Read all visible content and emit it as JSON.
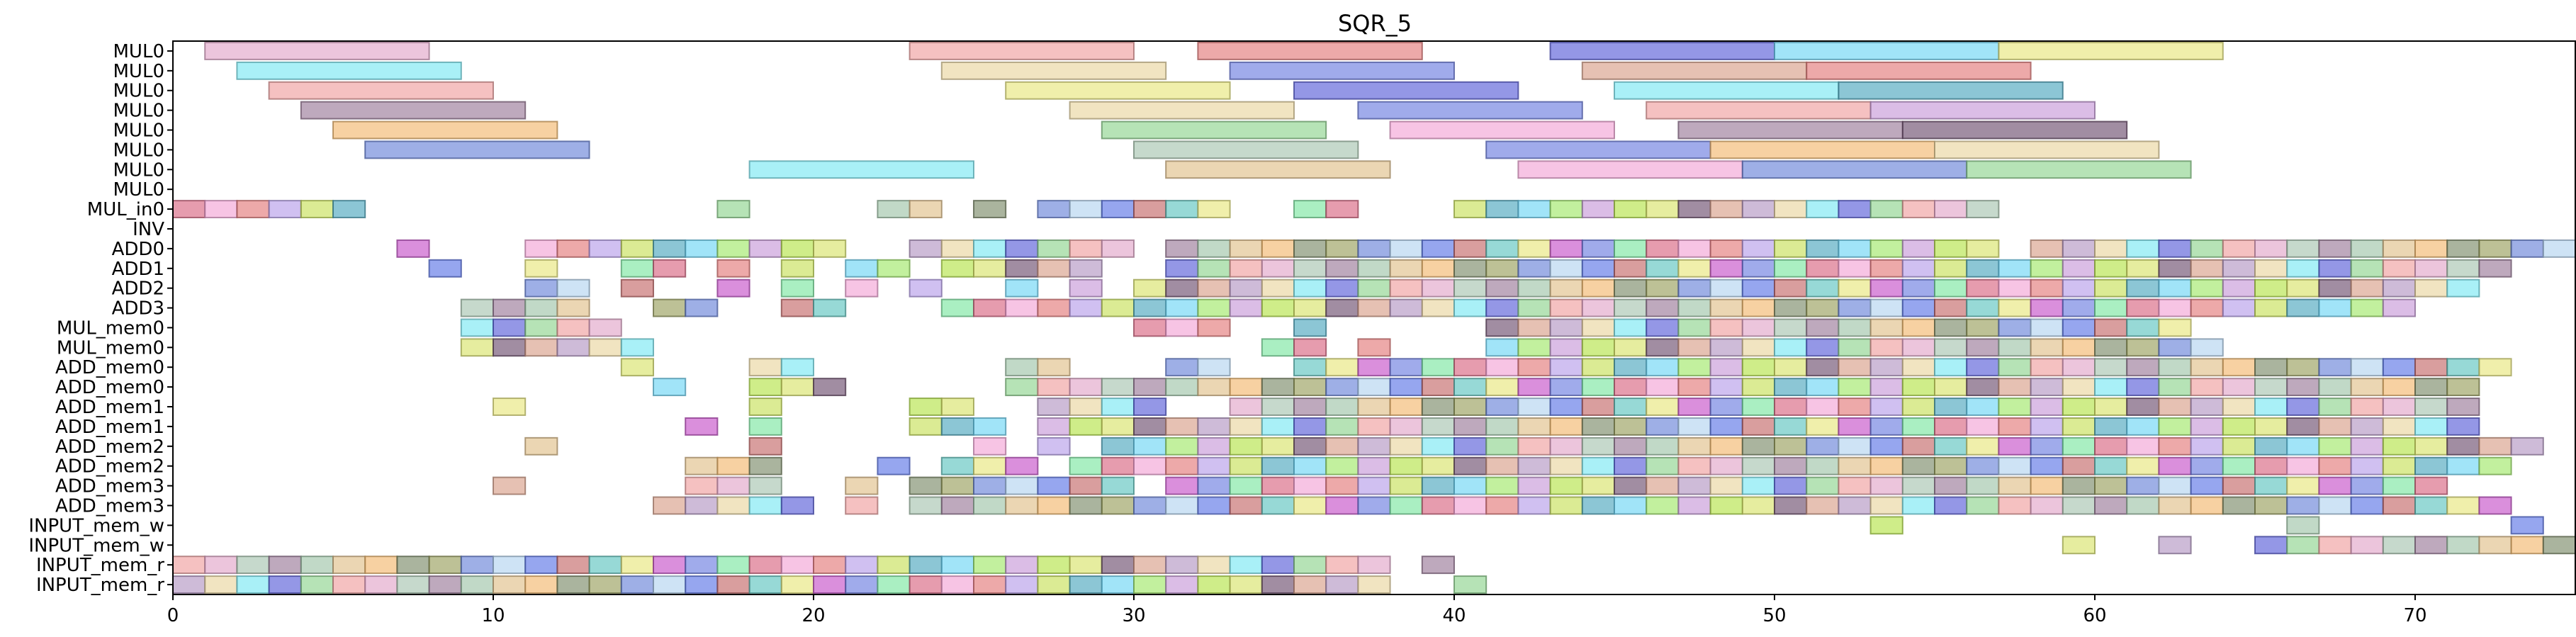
{
  "chart_data": {
    "type": "gantt",
    "title": "SQR_5",
    "xlabel": "",
    "ylabel": "",
    "xlim": [
      0,
      75
    ],
    "xticks": [
      0,
      10,
      20,
      30,
      40,
      50,
      60,
      70
    ],
    "grid": false,
    "legend": "none",
    "rows": [
      "MUL0",
      "MUL0",
      "MUL0",
      "MUL0",
      "MUL0",
      "MUL0",
      "MUL0",
      "MUL0",
      "MUL_in0",
      "INV",
      "ADD0",
      "ADD1",
      "ADD2",
      "ADD3",
      "MUL_mem0",
      "MUL_mem0",
      "ADD_mem0",
      "ADD_mem0",
      "ADD_mem1",
      "ADD_mem1",
      "ADD_mem2",
      "ADD_mem2",
      "ADD_mem3",
      "ADD_mem3",
      "INPUT_mem_w",
      "INPUT_mem_w",
      "INPUT_mem_r",
      "INPUT_mem_r"
    ],
    "long_tasks": [
      {
        "row": 0,
        "start": 1,
        "dur": 7
      },
      {
        "row": 0,
        "start": 23,
        "dur": 7
      },
      {
        "row": 0,
        "start": 32,
        "dur": 7
      },
      {
        "row": 0,
        "start": 43,
        "dur": 7
      },
      {
        "row": 0,
        "start": 50,
        "dur": 7
      },
      {
        "row": 0,
        "start": 57,
        "dur": 7
      },
      {
        "row": 1,
        "start": 2,
        "dur": 7
      },
      {
        "row": 1,
        "start": 24,
        "dur": 7
      },
      {
        "row": 1,
        "start": 33,
        "dur": 7
      },
      {
        "row": 1,
        "start": 44,
        "dur": 7
      },
      {
        "row": 1,
        "start": 51,
        "dur": 7
      },
      {
        "row": 2,
        "start": 3,
        "dur": 7
      },
      {
        "row": 2,
        "start": 26,
        "dur": 7
      },
      {
        "row": 2,
        "start": 35,
        "dur": 7
      },
      {
        "row": 2,
        "start": 45,
        "dur": 7
      },
      {
        "row": 2,
        "start": 52,
        "dur": 7
      },
      {
        "row": 3,
        "start": 4,
        "dur": 7
      },
      {
        "row": 3,
        "start": 28,
        "dur": 7
      },
      {
        "row": 3,
        "start": 37,
        "dur": 7
      },
      {
        "row": 3,
        "start": 46,
        "dur": 7
      },
      {
        "row": 3,
        "start": 53,
        "dur": 7
      },
      {
        "row": 4,
        "start": 5,
        "dur": 7
      },
      {
        "row": 4,
        "start": 29,
        "dur": 7
      },
      {
        "row": 4,
        "start": 38,
        "dur": 7
      },
      {
        "row": 4,
        "start": 47,
        "dur": 7
      },
      {
        "row": 4,
        "start": 54,
        "dur": 7
      },
      {
        "row": 5,
        "start": 6,
        "dur": 7
      },
      {
        "row": 5,
        "start": 30,
        "dur": 7
      },
      {
        "row": 5,
        "start": 41,
        "dur": 7
      },
      {
        "row": 5,
        "start": 48,
        "dur": 7
      },
      {
        "row": 5,
        "start": 55,
        "dur": 7
      },
      {
        "row": 6,
        "start": 18,
        "dur": 7
      },
      {
        "row": 6,
        "start": 31,
        "dur": 7
      },
      {
        "row": 6,
        "start": 42,
        "dur": 7
      },
      {
        "row": 6,
        "start": 49,
        "dur": 7
      },
      {
        "row": 6,
        "start": 56,
        "dur": 7
      }
    ],
    "cell_rows": [
      {
        "row": 8,
        "cells": [
          0,
          1,
          2,
          3,
          4,
          5,
          17,
          22,
          23,
          25,
          27,
          28,
          29,
          30,
          31,
          32,
          35,
          36,
          40,
          41,
          42,
          43,
          44,
          45,
          46,
          47,
          48,
          49,
          50,
          51,
          52,
          53,
          54,
          55,
          56
        ]
      },
      {
        "row": 10,
        "cells": [
          7,
          11,
          12,
          13,
          14,
          15,
          16,
          17,
          18,
          19,
          20,
          23,
          24,
          25,
          26,
          27,
          28,
          29,
          31,
          32,
          33,
          34,
          35,
          36,
          37,
          38,
          39,
          40,
          41,
          42,
          43,
          44,
          45,
          46,
          47,
          48,
          49,
          50,
          51,
          52,
          53,
          54,
          55,
          56,
          58,
          59,
          60,
          61,
          62,
          63,
          64,
          65,
          66,
          67,
          68,
          69,
          70,
          71,
          72,
          73,
          74
        ]
      },
      {
        "row": 11,
        "cells": [
          8,
          11,
          14,
          15,
          17,
          19,
          21,
          22,
          24,
          25,
          26,
          27,
          28,
          31,
          32,
          33,
          34,
          35,
          36,
          37,
          38,
          39,
          40,
          41,
          42,
          43,
          44,
          45,
          46,
          47,
          48,
          49,
          50,
          51,
          52,
          53,
          54,
          55,
          56,
          57,
          58,
          59,
          60,
          61,
          62,
          63,
          64,
          65,
          66,
          67,
          68,
          69,
          70,
          71,
          72
        ]
      },
      {
        "row": 12,
        "cells": [
          11,
          12,
          14,
          17,
          19,
          21,
          23,
          26,
          28,
          30,
          31,
          32,
          33,
          34,
          35,
          36,
          37,
          38,
          39,
          40,
          41,
          42,
          43,
          44,
          45,
          46,
          47,
          48,
          49,
          50,
          51,
          52,
          53,
          54,
          55,
          56,
          57,
          58,
          59,
          60,
          61,
          62,
          63,
          64,
          65,
          66,
          67,
          68,
          69,
          70,
          71
        ]
      },
      {
        "row": 13,
        "cells": [
          9,
          10,
          11,
          12,
          15,
          16,
          19,
          20,
          24,
          25,
          26,
          27,
          28,
          29,
          30,
          31,
          32,
          33,
          34,
          35,
          36,
          37,
          38,
          39,
          40,
          41,
          42,
          43,
          44,
          45,
          46,
          47,
          48,
          49,
          50,
          51,
          52,
          53,
          54,
          55,
          56,
          57,
          58,
          59,
          60,
          61,
          62,
          63,
          64,
          65,
          66,
          67,
          68,
          69
        ]
      },
      {
        "row": 14,
        "cells": [
          9,
          10,
          11,
          12,
          13,
          30,
          31,
          32,
          35,
          41,
          42,
          43,
          44,
          45,
          46,
          47,
          48,
          49,
          50,
          51,
          52,
          53,
          54,
          55,
          56,
          57,
          58,
          59,
          60,
          61,
          62
        ]
      },
      {
        "row": 15,
        "cells": [
          9,
          10,
          11,
          12,
          13,
          14,
          34,
          35,
          37,
          41,
          42,
          43,
          44,
          45,
          46,
          47,
          48,
          49,
          50,
          51,
          52,
          53,
          54,
          55,
          56,
          57,
          58,
          59,
          60,
          61,
          62,
          63
        ]
      },
      {
        "row": 16,
        "cells": [
          14,
          18,
          19,
          26,
          27,
          31,
          32,
          35,
          36,
          37,
          38,
          39,
          40,
          41,
          42,
          43,
          44,
          45,
          46,
          47,
          48,
          49,
          50,
          51,
          52,
          53,
          54,
          55,
          56,
          57,
          58,
          59,
          60,
          61,
          62,
          63,
          64,
          65,
          66,
          67,
          68,
          69,
          70,
          71,
          72
        ]
      },
      {
        "row": 17,
        "cells": [
          15,
          18,
          19,
          20,
          26,
          27,
          28,
          29,
          30,
          31,
          32,
          33,
          34,
          35,
          36,
          37,
          38,
          39,
          40,
          41,
          42,
          43,
          44,
          45,
          46,
          47,
          48,
          49,
          50,
          51,
          52,
          53,
          54,
          55,
          56,
          57,
          58,
          59,
          60,
          61,
          62,
          63,
          64,
          65,
          66,
          67,
          68,
          69,
          70,
          71
        ]
      },
      {
        "row": 18,
        "cells": [
          10,
          18,
          23,
          24,
          27,
          28,
          29,
          30,
          33,
          34,
          35,
          36,
          37,
          38,
          39,
          40,
          41,
          42,
          43,
          44,
          45,
          46,
          47,
          48,
          49,
          50,
          51,
          52,
          53,
          54,
          55,
          56,
          57,
          58,
          59,
          60,
          61,
          62,
          63,
          64,
          65,
          66,
          67,
          68,
          69,
          70,
          71
        ]
      },
      {
        "row": 19,
        "cells": [
          16,
          18,
          23,
          24,
          25,
          27,
          28,
          29,
          30,
          31,
          32,
          33,
          34,
          35,
          36,
          37,
          38,
          39,
          40,
          41,
          42,
          43,
          44,
          45,
          46,
          47,
          48,
          49,
          50,
          51,
          52,
          53,
          54,
          55,
          56,
          57,
          58,
          59,
          60,
          61,
          62,
          63,
          64,
          65,
          66,
          67,
          68,
          69,
          70,
          71
        ]
      },
      {
        "row": 20,
        "cells": [
          11,
          18,
          25,
          27,
          29,
          30,
          31,
          32,
          33,
          34,
          35,
          36,
          37,
          38,
          39,
          40,
          41,
          42,
          43,
          44,
          45,
          46,
          47,
          48,
          49,
          50,
          51,
          52,
          53,
          54,
          55,
          56,
          57,
          58,
          59,
          60,
          61,
          62,
          63,
          64,
          65,
          66,
          67,
          68,
          69,
          70,
          71,
          72,
          73
        ]
      },
      {
        "row": 21,
        "cells": [
          16,
          17,
          18,
          22,
          24,
          25,
          26,
          28,
          29,
          30,
          31,
          32,
          33,
          34,
          35,
          36,
          37,
          38,
          39,
          40,
          41,
          42,
          43,
          44,
          45,
          46,
          47,
          48,
          49,
          50,
          51,
          52,
          53,
          54,
          55,
          56,
          57,
          58,
          59,
          60,
          61,
          62,
          63,
          64,
          65,
          66,
          67,
          68,
          69,
          70,
          71,
          72
        ]
      },
      {
        "row": 22,
        "cells": [
          10,
          16,
          17,
          18,
          21,
          23,
          24,
          25,
          26,
          27,
          28,
          29,
          31,
          32,
          33,
          34,
          35,
          36,
          37,
          38,
          39,
          40,
          41,
          42,
          43,
          44,
          45,
          46,
          47,
          48,
          49,
          50,
          51,
          52,
          53,
          54,
          55,
          56,
          57,
          58,
          59,
          60,
          61,
          62,
          63,
          64,
          65,
          66,
          67,
          68,
          69,
          70
        ]
      },
      {
        "row": 23,
        "cells": [
          15,
          16,
          17,
          18,
          19,
          21,
          23,
          24,
          25,
          26,
          27,
          28,
          29,
          30,
          31,
          32,
          33,
          34,
          35,
          36,
          37,
          38,
          39,
          40,
          41,
          42,
          43,
          44,
          45,
          46,
          47,
          48,
          49,
          50,
          51,
          52,
          53,
          54,
          55,
          56,
          57,
          58,
          59,
          60,
          61,
          62,
          63,
          64,
          65,
          66,
          67,
          68,
          69,
          70,
          71,
          72
        ]
      },
      {
        "row": 24,
        "cells": [
          53,
          66,
          73
        ]
      },
      {
        "row": 25,
        "cells": [
          59,
          62,
          65,
          66,
          67,
          68,
          69,
          70,
          71,
          72,
          73,
          74
        ]
      },
      {
        "row": 26,
        "cells": [
          0,
          1,
          2,
          3,
          4,
          5,
          6,
          7,
          8,
          9,
          10,
          11,
          12,
          13,
          14,
          15,
          16,
          17,
          18,
          19,
          20,
          21,
          22,
          23,
          24,
          25,
          26,
          27,
          28,
          29,
          30,
          31,
          32,
          33,
          34,
          35,
          36,
          37,
          39
        ]
      },
      {
        "row": 27,
        "cells": [
          0,
          1,
          2,
          3,
          4,
          5,
          6,
          7,
          8,
          9,
          10,
          11,
          12,
          13,
          14,
          15,
          16,
          17,
          18,
          19,
          20,
          21,
          22,
          23,
          24,
          25,
          26,
          27,
          28,
          29,
          30,
          31,
          32,
          33,
          34,
          35,
          36,
          37,
          40
        ]
      }
    ],
    "palette": [
      "#c8e05a",
      "#c653c9",
      "#9a9f5e",
      "#e2a6c9",
      "#d8a08a",
      "#4ea8bf",
      "#6d7ee0",
      "#6a84d9",
      "#a7c4b0",
      "#b497c3",
      "#6fd5f5",
      "#7de6a1",
      "#b4d4f0",
      "#9b7b9a",
      "#e9d5a0",
      "#a2e86a",
      "#d86783",
      "#5d77e6",
      "#9fc5a9",
      "#7be8f3",
      "#c79ad8",
      "#f2a5d6",
      "#c46a6a",
      "#e0c08a",
      "#5b60d9",
      "#b5e44a",
      "#e47b7b",
      "#60c4c0",
      "#f3b970",
      "#8fd48f",
      "#d9e36c",
      "#b79eea",
      "#e8e67e",
      "#7d8c6a",
      "#f0a0a0",
      "#6f5070"
    ]
  }
}
